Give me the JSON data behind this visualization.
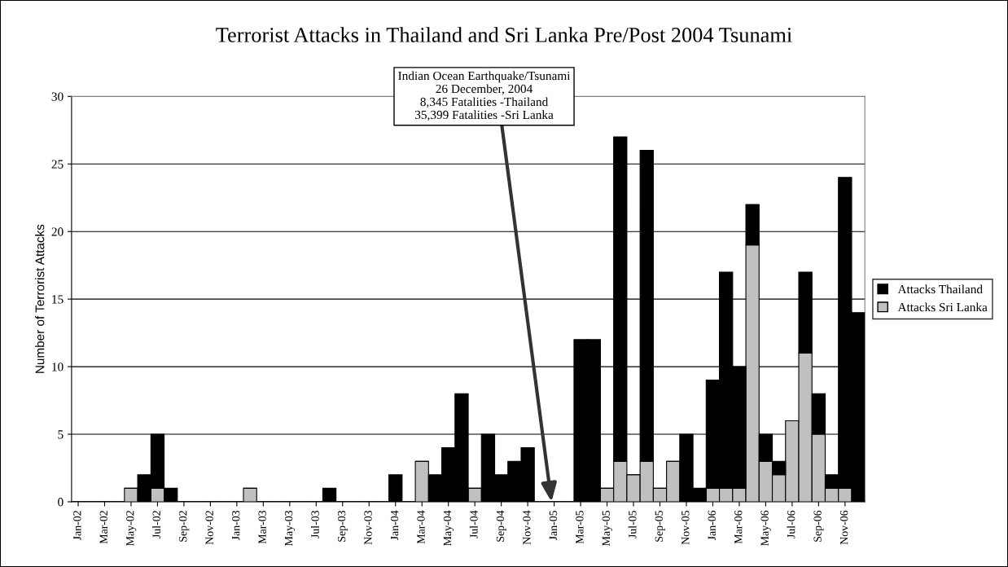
{
  "chart_data": {
    "type": "bar",
    "stacked": true,
    "title": "Terrorist Attacks in Thailand and Sri Lanka Pre/Post 2004 Tsunami",
    "ylabel": "Number of Terrorist Attacks",
    "categories": [
      "Jan-02",
      null,
      "Mar-02",
      null,
      "May-02",
      null,
      "Jul-02",
      null,
      "Sep-02",
      null,
      "Nov-02",
      null,
      "Jan-03",
      null,
      "Mar-03",
      null,
      "May-03",
      null,
      "Jul-03",
      null,
      "Sep-03",
      null,
      "Nov-03",
      null,
      "Jan-04",
      null,
      "Mar-04",
      null,
      "May-04",
      null,
      "Jul-04",
      null,
      "Sep-04",
      null,
      "Nov-04",
      null,
      "Jan-05",
      null,
      "Mar-05",
      null,
      "May-05",
      null,
      "Jul-05",
      null,
      "Sep-05",
      null,
      "Nov-05",
      null,
      "Jan-06",
      null,
      "Mar-06",
      null,
      "May-06",
      null,
      "Jul-06",
      null,
      "Sep-06",
      null,
      "Nov-06",
      null
    ],
    "series": [
      {
        "name": "Attacks Sri Lanka",
        "color": "#c0c0c0",
        "values": [
          0,
          0,
          0,
          0,
          1,
          0,
          1,
          0,
          0,
          0,
          0,
          0,
          0,
          1,
          0,
          0,
          0,
          0,
          0,
          0,
          0,
          0,
          0,
          0,
          0,
          0,
          3,
          0,
          0,
          0,
          1,
          0,
          0,
          0,
          0,
          0,
          0,
          0,
          0,
          0,
          1,
          3,
          2,
          3,
          1,
          3,
          0,
          0,
          1,
          1,
          1,
          19,
          3,
          2,
          6,
          11,
          5,
          1,
          1,
          0
        ]
      },
      {
        "name": "Attacks Thailand",
        "color": "#000000",
        "values": [
          0,
          0,
          0,
          0,
          0,
          2,
          4,
          1,
          0,
          0,
          0,
          0,
          0,
          0,
          0,
          0,
          0,
          0,
          0,
          1,
          0,
          0,
          0,
          0,
          2,
          0,
          0,
          2,
          4,
          8,
          0,
          5,
          2,
          3,
          4,
          0,
          0,
          0,
          12,
          12,
          0,
          24,
          0,
          23,
          0,
          0,
          5,
          1,
          8,
          16,
          9,
          3,
          2,
          1,
          0,
          6,
          3,
          1,
          23,
          14
        ]
      }
    ],
    "ylim": [
      0,
      30
    ],
    "yticks": [
      0,
      5,
      10,
      15,
      20,
      25,
      30
    ],
    "grid": "y",
    "legend": "right",
    "annotations": [
      "Indian Ocean Earthquake/Tsunami\n26 December, 2004\n8,345 Fatalities -Thailand\n35,399 Fatalities -Sri Lanka"
    ]
  }
}
